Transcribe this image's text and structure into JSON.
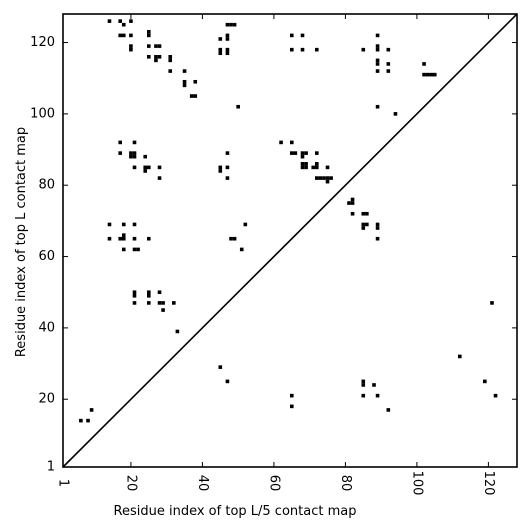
{
  "chart_data": {
    "type": "scatter",
    "title": "",
    "xlabel": "Residue index of top L/5 contact map",
    "ylabel": "Residue index of top L contact map",
    "xlim": [
      1,
      128
    ],
    "ylim": [
      1,
      128
    ],
    "xticks": [
      1,
      20,
      40,
      60,
      80,
      100,
      120
    ],
    "yticks": [
      1,
      20,
      40,
      60,
      80,
      100,
      120
    ],
    "grid": false,
    "diagonal": true,
    "series": [
      {
        "name": "",
        "points": [
          [
            14,
            126
          ],
          [
            17,
            126
          ],
          [
            18,
            125
          ],
          [
            20,
            126
          ],
          [
            17,
            122
          ],
          [
            18,
            122
          ],
          [
            20,
            122
          ],
          [
            25,
            123
          ],
          [
            25,
            122
          ],
          [
            20,
            119
          ],
          [
            20,
            118
          ],
          [
            25,
            119
          ],
          [
            27,
            119
          ],
          [
            28,
            119
          ],
          [
            25,
            116
          ],
          [
            27,
            116
          ],
          [
            27,
            115
          ],
          [
            28,
            116
          ],
          [
            31,
            116
          ],
          [
            31,
            115
          ],
          [
            31,
            112
          ],
          [
            35,
            112
          ],
          [
            35,
            109
          ],
          [
            35,
            108
          ],
          [
            38,
            109
          ],
          [
            37,
            105
          ],
          [
            38,
            105
          ],
          [
            45,
            121
          ],
          [
            47,
            122
          ],
          [
            47,
            121
          ],
          [
            45,
            118
          ],
          [
            45,
            117
          ],
          [
            47,
            118
          ],
          [
            47,
            117
          ],
          [
            47,
            125
          ],
          [
            48,
            125
          ],
          [
            49,
            125
          ],
          [
            50,
            102
          ],
          [
            65,
            122
          ],
          [
            68,
            122
          ],
          [
            65,
            118
          ],
          [
            68,
            118
          ],
          [
            72,
            118
          ],
          [
            85,
            118
          ],
          [
            89,
            122
          ],
          [
            89,
            119
          ],
          [
            89,
            118
          ],
          [
            92,
            118
          ],
          [
            89,
            115
          ],
          [
            89,
            114
          ],
          [
            92,
            114
          ],
          [
            89,
            112
          ],
          [
            92,
            112
          ],
          [
            102,
            114
          ],
          [
            102,
            111
          ],
          [
            103,
            111
          ],
          [
            104,
            111
          ],
          [
            105,
            111
          ],
          [
            89,
            102
          ],
          [
            94,
            100
          ],
          [
            17,
            92
          ],
          [
            21,
            92
          ],
          [
            17,
            89
          ],
          [
            20,
            89
          ],
          [
            20,
            88
          ],
          [
            21,
            89
          ],
          [
            21,
            88
          ],
          [
            24,
            88
          ],
          [
            21,
            85
          ],
          [
            24,
            85
          ],
          [
            24,
            84
          ],
          [
            25,
            85
          ],
          [
            28,
            85
          ],
          [
            28,
            82
          ],
          [
            45,
            85
          ],
          [
            45,
            84
          ],
          [
            47,
            89
          ],
          [
            47,
            85
          ],
          [
            47,
            82
          ],
          [
            62,
            92
          ],
          [
            65,
            92
          ],
          [
            65,
            89
          ],
          [
            66,
            89
          ],
          [
            68,
            89
          ],
          [
            68,
            88
          ],
          [
            69,
            89
          ],
          [
            68,
            86
          ],
          [
            68,
            85
          ],
          [
            69,
            86
          ],
          [
            69,
            85
          ],
          [
            71,
            85
          ],
          [
            72,
            86
          ],
          [
            72,
            85
          ],
          [
            72,
            89
          ],
          [
            72,
            82
          ],
          [
            73,
            82
          ],
          [
            74,
            82
          ],
          [
            75,
            82
          ],
          [
            75,
            81
          ],
          [
            76,
            82
          ],
          [
            75,
            85
          ],
          [
            81,
            75
          ],
          [
            82,
            75
          ],
          [
            82,
            76
          ],
          [
            82,
            72
          ],
          [
            85,
            72
          ],
          [
            86,
            72
          ],
          [
            85,
            69
          ],
          [
            86,
            69
          ],
          [
            85,
            68
          ],
          [
            89,
            69
          ],
          [
            89,
            68
          ],
          [
            89,
            65
          ],
          [
            14,
            69
          ],
          [
            18,
            69
          ],
          [
            21,
            69
          ],
          [
            14,
            65
          ],
          [
            17,
            65
          ],
          [
            18,
            65
          ],
          [
            18,
            66
          ],
          [
            18,
            62
          ],
          [
            21,
            65
          ],
          [
            21,
            62
          ],
          [
            22,
            62
          ],
          [
            25,
            65
          ],
          [
            48,
            65
          ],
          [
            49,
            65
          ],
          [
            51,
            62
          ],
          [
            52,
            69
          ],
          [
            21,
            50
          ],
          [
            21,
            49
          ],
          [
            21,
            47
          ],
          [
            25,
            50
          ],
          [
            25,
            49
          ],
          [
            25,
            47
          ],
          [
            28,
            50
          ],
          [
            28,
            47
          ],
          [
            29,
            47
          ],
          [
            29,
            45
          ],
          [
            32,
            47
          ],
          [
            33,
            39
          ],
          [
            45,
            29
          ],
          [
            47,
            25
          ],
          [
            65,
            21
          ],
          [
            65,
            18
          ],
          [
            85,
            25
          ],
          [
            85,
            24
          ],
          [
            85,
            21
          ],
          [
            88,
            24
          ],
          [
            89,
            21
          ],
          [
            92,
            17
          ],
          [
            112,
            32
          ],
          [
            119,
            25
          ],
          [
            121,
            47
          ],
          [
            122,
            21
          ],
          [
            6,
            14
          ],
          [
            8,
            14
          ],
          [
            9,
            17
          ]
        ]
      }
    ]
  }
}
